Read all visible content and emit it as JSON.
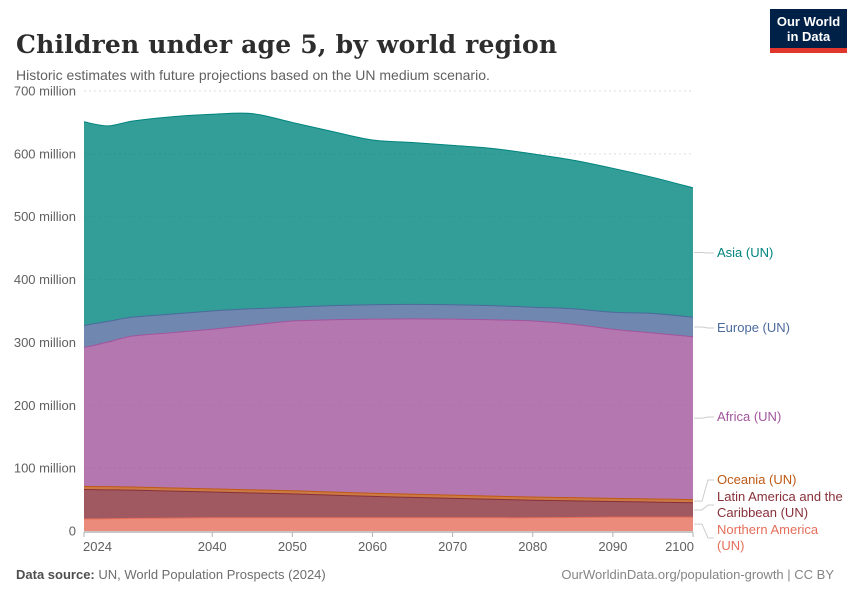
{
  "header": {
    "title": "Children under age 5, by world region",
    "subtitle": "Historic estimates with future projections based on the UN medium scenario."
  },
  "logo": {
    "line1": "Our World",
    "line2": "in Data",
    "bg_color": "#002147",
    "accent_color": "#E0362C"
  },
  "footer": {
    "source_label": "Data source:",
    "source_text": " UN, World Population Prospects (2024)",
    "credit": "OurWorldinData.org/population-growth | CC BY"
  },
  "chart_data": {
    "type": "area",
    "stacked": true,
    "title": "Children under age 5, by world region",
    "unit": "million children",
    "xlim": [
      2024,
      2100
    ],
    "ylim": [
      0,
      700
    ],
    "grid": true,
    "grid_color": "#dcdcdc",
    "axis_text_color": "#606060",
    "fill_opacity": 0.8,
    "legend_position": "right",
    "x_years": [
      2024,
      2027,
      2030,
      2035,
      2040,
      2045,
      2050,
      2055,
      2060,
      2065,
      2070,
      2075,
      2080,
      2085,
      2090,
      2095,
      2100
    ],
    "x_ticks": [
      2024,
      2040,
      2050,
      2060,
      2070,
      2080,
      2090,
      2100
    ],
    "y_ticks": [
      {
        "value": 0,
        "label": "0"
      },
      {
        "value": 100,
        "label": "100 million"
      },
      {
        "value": 200,
        "label": "200 million"
      },
      {
        "value": 300,
        "label": "300 million"
      },
      {
        "value": 400,
        "label": "400 million"
      },
      {
        "value": 500,
        "label": "500 million"
      },
      {
        "value": 600,
        "label": "600 million"
      },
      {
        "value": 700,
        "label": "700 million"
      }
    ],
    "series": [
      {
        "key": "northern_america",
        "label": "Northern America (UN)",
        "color": "#E56E5A",
        "values": [
          19,
          19.5,
          20,
          20.5,
          21,
          21,
          21,
          21,
          21,
          21,
          21,
          21,
          21,
          21.5,
          22,
          22,
          22
        ]
      },
      {
        "key": "latin_america",
        "label": "Latin America and the Caribbean (UN)",
        "color": "#883039",
        "values": [
          47,
          46,
          45,
          43,
          41,
          39.5,
          38,
          36,
          34,
          32.5,
          31,
          29.5,
          28,
          26.5,
          25,
          24,
          23
        ]
      },
      {
        "key": "oceania",
        "label": "Oceania (UN)",
        "color": "#BE5915",
        "values": [
          5,
          5,
          5,
          5,
          5,
          5,
          5,
          5,
          5,
          5,
          5,
          5,
          5,
          5,
          5,
          5,
          5
        ]
      },
      {
        "key": "africa",
        "label": "Africa (UN)",
        "color": "#A2559C",
        "values": [
          221,
          230,
          240,
          247,
          254,
          262,
          270,
          274,
          277,
          279,
          280,
          280.5,
          280,
          276,
          269,
          264,
          259
        ]
      },
      {
        "key": "europe",
        "label": "Europe (UN)",
        "color": "#4C6A9C",
        "values": [
          35,
          33,
          30,
          29.5,
          29,
          26,
          22,
          22.5,
          23,
          23,
          23,
          22.5,
          22,
          24.5,
          27,
          31,
          31
        ]
      },
      {
        "key": "asia",
        "label": "Asia (UN)",
        "color": "#00847E",
        "values": [
          324,
          311,
          312,
          314,
          313,
          310.5,
          294,
          277,
          262,
          257.5,
          253.5,
          250,
          244,
          236.5,
          229,
          216.5,
          206
        ]
      }
    ],
    "totals_by_decade_note": "stack totals: 2024=651, 2040=663, 2045=664 (peak), 2050=650, 2060=622, 2070=613.5, 2080=600, 2090=577, 2100=546"
  }
}
